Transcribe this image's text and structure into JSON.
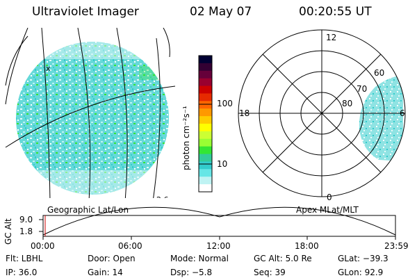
{
  "header": {
    "instrument": "Ultraviolet Imager",
    "date": "02 May 07",
    "time": "00:20:55 UT"
  },
  "left_panel": {
    "caption": "Geographic Lat/Lon"
  },
  "colorbar": {
    "unit_label": "photon cm⁻²s⁻¹",
    "ticks": [
      "100",
      "10"
    ],
    "colors": [
      "#000033",
      "#330033",
      "#66003a",
      "#99002f",
      "#cc0000",
      "#e62a00",
      "#ff6600",
      "#ff9900",
      "#ffcc00",
      "#ffff00",
      "#ccff33",
      "#99ff33",
      "#33e633",
      "#33cc99",
      "#33cccc",
      "#66e6e6",
      "#bff3f3",
      "#ffffff"
    ]
  },
  "right_panel": {
    "caption": "Apex  MLat/MLT",
    "mlt_labels": {
      "top": "12",
      "bottom": "0",
      "left": "18",
      "right": "6"
    },
    "ring_labels": [
      "60",
      "70",
      "80"
    ]
  },
  "altitude_strip": {
    "axis_label": "GC Alt",
    "y_ticks": [
      "9.0",
      "1.8"
    ],
    "x_ticks": [
      "00:00",
      "06:00",
      "12:00",
      "18:00",
      "23:59"
    ]
  },
  "footer": {
    "filter": "Flt: LBHL",
    "door": "Door: Open",
    "mode": "Mode: Normal",
    "gc_alt": "GC Alt: 5.0 Re",
    "glat": "GLat: −39.3",
    "ip": "IP: 36.0",
    "gain": "Gain: 14",
    "dsp": "Dsp:   −5.8",
    "seq": "Seq: 39",
    "glon": "GLon:  92.9"
  },
  "colors": {
    "aurora_base": "#33cccc",
    "aurora_light": "#bff3f3",
    "aurora_green": "#33e633",
    "trace_marker": "#cc0000"
  }
}
